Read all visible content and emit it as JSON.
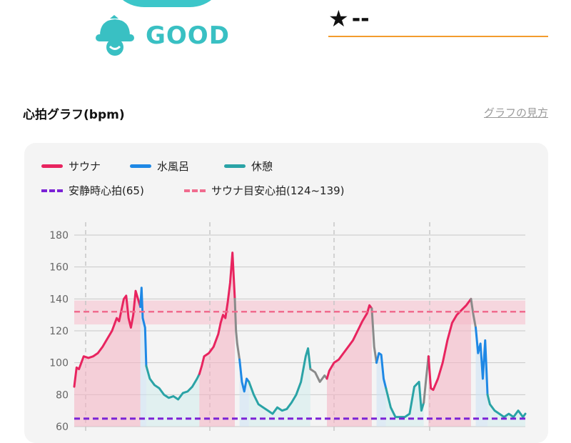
{
  "status": {
    "label": "GOOD",
    "color": "#39c0c3"
  },
  "rating": {
    "star": "★",
    "value": "--",
    "line_color": "#f39c2e"
  },
  "graph": {
    "title": "心拍グラフ(bpm)",
    "help_link": "グラフの見方"
  },
  "chart_data": {
    "type": "line",
    "title": "心拍グラフ(bpm)",
    "ylabel": "bpm",
    "ylim": [
      60,
      180
    ],
    "yticks": [
      60,
      80,
      100,
      120,
      140,
      160,
      180
    ],
    "grid": true,
    "legend_placement": "top-left",
    "legend": [
      {
        "name": "サウナ",
        "color": "#e8245f",
        "style": "solid"
      },
      {
        "name": "水風呂",
        "color": "#1e88e5",
        "style": "solid"
      },
      {
        "name": "休憩",
        "color": "#2aa3a6",
        "style": "solid"
      },
      {
        "name": "安静時心拍(65)",
        "color": "#7b22d6",
        "style": "dashed"
      },
      {
        "name": "サウナ目安心拍(124~139)",
        "color": "#f06c8e",
        "style": "dashed"
      }
    ],
    "resting_hr": 65,
    "target_range": [
      124,
      139
    ],
    "target_line": 132,
    "series": [
      {
        "name": "サウナ",
        "color": "#e8245f",
        "points": [
          [
            0,
            85
          ],
          [
            1,
            97
          ],
          [
            2,
            96
          ],
          [
            4,
            104
          ],
          [
            6,
            103
          ],
          [
            8,
            104
          ],
          [
            10,
            106
          ],
          [
            12,
            110
          ],
          [
            14,
            115
          ],
          [
            16,
            120
          ],
          [
            18,
            128
          ],
          [
            19,
            126
          ],
          [
            20,
            133
          ],
          [
            21,
            140
          ],
          [
            22,
            142
          ],
          [
            23,
            128
          ],
          [
            24,
            122
          ],
          [
            25,
            130
          ],
          [
            26,
            145
          ],
          [
            27,
            140
          ],
          [
            28,
            135
          ]
        ]
      },
      {
        "name": "水風呂",
        "color": "#1e88e5",
        "points": [
          [
            28,
            135
          ],
          [
            28.5,
            147
          ],
          [
            29,
            128
          ],
          [
            30,
            122
          ],
          [
            30.5,
            98
          ]
        ]
      },
      {
        "name": "休憩",
        "color": "#2aa3a6",
        "points": [
          [
            30.5,
            98
          ],
          [
            32,
            90
          ],
          [
            34,
            86
          ],
          [
            36,
            84
          ],
          [
            38,
            80
          ],
          [
            40,
            78
          ],
          [
            42,
            79
          ],
          [
            44,
            77
          ],
          [
            46,
            81
          ],
          [
            48,
            82
          ],
          [
            50,
            85
          ],
          [
            52,
            90
          ],
          [
            53,
            93
          ]
        ]
      },
      {
        "name": "サウナ",
        "color": "#e8245f",
        "points": [
          [
            53,
            93
          ],
          [
            54,
            98
          ],
          [
            55,
            104
          ],
          [
            57,
            106
          ],
          [
            59,
            110
          ],
          [
            61,
            118
          ],
          [
            62,
            125
          ],
          [
            63,
            130
          ],
          [
            64,
            128
          ],
          [
            65,
            138
          ],
          [
            66,
            150
          ],
          [
            67,
            169
          ],
          [
            68,
            140
          ]
        ]
      },
      {
        "name": "休憩",
        "color": "#8a8a8a",
        "points": [
          [
            68,
            140
          ],
          [
            68.5,
            120
          ],
          [
            69,
            112
          ],
          [
            70,
            102
          ]
        ]
      },
      {
        "name": "水風呂",
        "color": "#1e88e5",
        "points": [
          [
            70,
            102
          ],
          [
            71,
            88
          ],
          [
            72,
            82
          ],
          [
            73,
            90
          ],
          [
            74,
            88
          ]
        ]
      },
      {
        "name": "休憩",
        "color": "#2aa3a6",
        "points": [
          [
            74,
            88
          ],
          [
            76,
            80
          ],
          [
            78,
            74
          ],
          [
            80,
            72
          ],
          [
            82,
            70
          ],
          [
            84,
            68
          ],
          [
            86,
            72
          ],
          [
            88,
            70
          ],
          [
            90,
            71
          ],
          [
            92,
            75
          ],
          [
            94,
            80
          ],
          [
            96,
            88
          ],
          [
            98,
            104
          ],
          [
            99,
            109
          ],
          [
            100,
            96
          ]
        ]
      },
      {
        "name": "休憩",
        "color": "#8a8a8a",
        "points": [
          [
            100,
            96
          ],
          [
            102,
            94
          ],
          [
            104,
            88
          ],
          [
            106,
            92
          ],
          [
            107,
            90
          ]
        ]
      },
      {
        "name": "サウナ",
        "color": "#e8245f",
        "points": [
          [
            107,
            90
          ],
          [
            108,
            95
          ],
          [
            110,
            100
          ],
          [
            112,
            102
          ],
          [
            114,
            106
          ],
          [
            116,
            110
          ],
          [
            118,
            114
          ],
          [
            120,
            120
          ],
          [
            122,
            126
          ],
          [
            124,
            131
          ],
          [
            125,
            136
          ],
          [
            126,
            134
          ]
        ]
      },
      {
        "name": "休憩",
        "color": "#8a8a8a",
        "points": [
          [
            126,
            134
          ],
          [
            127,
            110
          ],
          [
            128,
            100
          ]
        ]
      },
      {
        "name": "水風呂",
        "color": "#1e88e5",
        "points": [
          [
            128,
            100
          ],
          [
            129,
            106
          ],
          [
            130,
            105
          ],
          [
            131,
            90
          ],
          [
            132,
            84
          ]
        ]
      },
      {
        "name": "休憩",
        "color": "#2aa3a6",
        "points": [
          [
            132,
            84
          ],
          [
            134,
            72
          ],
          [
            136,
            66
          ],
          [
            138,
            66
          ],
          [
            140,
            66
          ],
          [
            142,
            68
          ],
          [
            144,
            85
          ],
          [
            146,
            88
          ],
          [
            147,
            70
          ],
          [
            148,
            75
          ]
        ]
      },
      {
        "name": "休憩",
        "color": "#8a8a8a",
        "points": [
          [
            148,
            75
          ],
          [
            149,
            90
          ],
          [
            150,
            104
          ]
        ]
      },
      {
        "name": "サウナ",
        "color": "#e8245f",
        "points": [
          [
            150,
            104
          ],
          [
            151,
            84
          ],
          [
            152,
            83
          ],
          [
            154,
            90
          ],
          [
            156,
            100
          ],
          [
            158,
            114
          ],
          [
            160,
            125
          ],
          [
            162,
            130
          ],
          [
            164,
            133
          ],
          [
            166,
            136
          ],
          [
            168,
            140
          ]
        ]
      },
      {
        "name": "休憩",
        "color": "#8a8a8a",
        "points": [
          [
            168,
            140
          ],
          [
            169,
            130
          ],
          [
            170,
            122
          ]
        ]
      },
      {
        "name": "水風呂",
        "color": "#1e88e5",
        "points": [
          [
            170,
            122
          ],
          [
            171,
            106
          ],
          [
            172,
            112
          ],
          [
            173,
            90
          ],
          [
            174,
            114
          ],
          [
            175,
            80
          ]
        ]
      },
      {
        "name": "休憩",
        "color": "#2aa3a6",
        "points": [
          [
            175,
            80
          ],
          [
            176,
            74
          ],
          [
            178,
            70
          ],
          [
            180,
            68
          ],
          [
            182,
            66
          ],
          [
            184,
            68
          ],
          [
            186,
            66
          ],
          [
            188,
            70
          ],
          [
            190,
            66
          ],
          [
            191,
            68
          ]
        ]
      }
    ]
  }
}
